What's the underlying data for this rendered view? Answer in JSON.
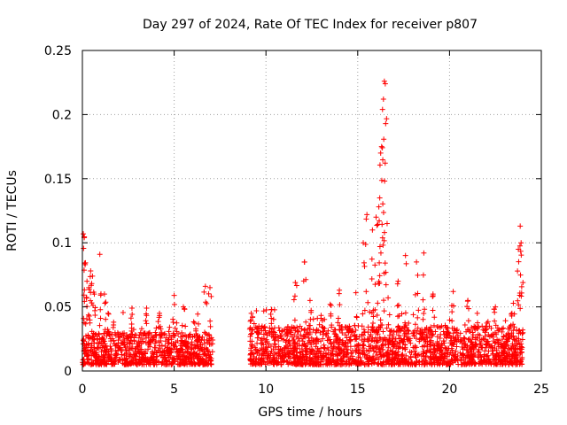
{
  "chart_data": {
    "type": "scatter",
    "title": "Day 297 of 2024, Rate Of TEC Index for receiver p807",
    "xlabel": "GPS time / hours",
    "ylabel": "ROTI / TECUs",
    "xlim": [
      0,
      25
    ],
    "ylim": [
      0,
      0.25
    ],
    "xticks": [
      0,
      5,
      10,
      15,
      20,
      25
    ],
    "yticks": [
      0,
      0.05,
      0.1,
      0.15,
      0.2,
      0.25
    ],
    "xtick_labels": [
      "0",
      "5",
      "10",
      "15",
      "20",
      "25"
    ],
    "ytick_labels": [
      "0",
      "0.05",
      "0.1",
      "0.15",
      "0.2",
      "0.25"
    ],
    "grid": true,
    "marker": "+",
    "marker_color": "#ff0000",
    "data_gap_hours": [
      7.1,
      9.1
    ],
    "series": [
      {
        "name": "ROTI",
        "segments": [
          {
            "x_range": [
              0,
              7.1
            ],
            "baseline_range": [
              0.005,
              0.03
            ],
            "notable_points": [
              [
                0.05,
                0.107
              ],
              [
                0.1,
                0.104
              ],
              [
                0.15,
                0.083
              ],
              [
                0.25,
                0.07
              ],
              [
                0.35,
                0.065
              ],
              [
                0.45,
                0.078
              ],
              [
                0.55,
                0.074
              ],
              [
                0.65,
                0.06
              ],
              [
                0.95,
                0.091
              ],
              [
                1.2,
                0.06
              ],
              [
                1.4,
                0.045
              ],
              [
                2.7,
                0.049
              ],
              [
                3.5,
                0.049
              ],
              [
                4.2,
                0.045
              ],
              [
                5.0,
                0.059
              ],
              [
                5.5,
                0.05
              ],
              [
                6.7,
                0.066
              ],
              [
                6.95,
                0.065
              ]
            ]
          },
          {
            "x_range": [
              9.1,
              24.0
            ],
            "baseline_range": [
              0.005,
              0.035
            ],
            "notable_points": [
              [
                9.2,
                0.045
              ],
              [
                10.3,
                0.048
              ],
              [
                11.6,
                0.069
              ],
              [
                12.1,
                0.085
              ],
              [
                12.4,
                0.055
              ],
              [
                13.5,
                0.052
              ],
              [
                14.0,
                0.063
              ],
              [
                14.9,
                0.061
              ],
              [
                15.3,
                0.1
              ],
              [
                15.5,
                0.122
              ],
              [
                15.8,
                0.11
              ],
              [
                16.0,
                0.12
              ],
              [
                16.15,
                0.128
              ],
              [
                16.2,
                0.135
              ],
              [
                16.25,
                0.17
              ],
              [
                16.3,
                0.175
              ],
              [
                16.35,
                0.204
              ],
              [
                16.4,
                0.212
              ],
              [
                16.45,
                0.226
              ],
              [
                16.5,
                0.224
              ],
              [
                16.6,
                0.115
              ],
              [
                17.2,
                0.07
              ],
              [
                17.6,
                0.09
              ],
              [
                18.2,
                0.085
              ],
              [
                18.6,
                0.092
              ],
              [
                19.1,
                0.06
              ],
              [
                20.2,
                0.062
              ],
              [
                21.0,
                0.055
              ],
              [
                22.5,
                0.05
              ],
              [
                23.4,
                0.045
              ],
              [
                23.75,
                0.095
              ],
              [
                23.85,
                0.113
              ],
              [
                23.9,
                0.1
              ],
              [
                24.0,
                0.069
              ]
            ]
          }
        ]
      }
    ]
  }
}
